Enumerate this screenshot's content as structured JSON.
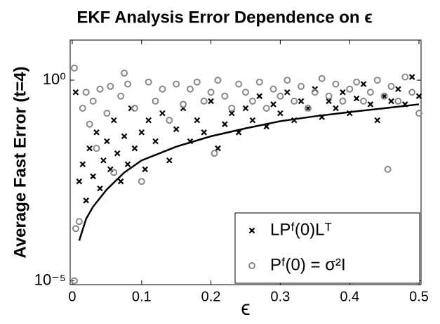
{
  "chart_data": {
    "type": "scatter",
    "title": "EKF Analysis Error Dependence on ϵ",
    "xlabel": "ϵ",
    "ylabel": "Average Fast Error (t=4)",
    "yscale": "log",
    "xlim": [
      -0.003,
      0.503
    ],
    "ylim": [
      8e-06,
      10
    ],
    "xticks": [
      0,
      0.1,
      0.2,
      0.3,
      0.4,
      0.5
    ],
    "yticks": [
      {
        "value": 1e-05,
        "label": "10⁻⁵"
      },
      {
        "value": 1,
        "label": "10⁰"
      }
    ],
    "legend": "lower right",
    "series": [
      {
        "name": "LPᶠ(0)Lᵀ",
        "marker": "x",
        "color": "#000000",
        "x": [
          0.005,
          0.01,
          0.015,
          0.02,
          0.025,
          0.03,
          0.035,
          0.04,
          0.045,
          0.05,
          0.055,
          0.06,
          0.065,
          0.07,
          0.075,
          0.08,
          0.085,
          0.09,
          0.1,
          0.105,
          0.11,
          0.12,
          0.13,
          0.14,
          0.15,
          0.16,
          0.17,
          0.18,
          0.19,
          0.2,
          0.21,
          0.22,
          0.23,
          0.24,
          0.25,
          0.26,
          0.27,
          0.28,
          0.29,
          0.3,
          0.31,
          0.32,
          0.33,
          0.34,
          0.35,
          0.36,
          0.37,
          0.38,
          0.39,
          0.4,
          0.41,
          0.42,
          0.43,
          0.44,
          0.45,
          0.46,
          0.47,
          0.48,
          0.49,
          0.5
        ],
        "values": [
          0.5,
          0.003,
          0.008,
          0.001,
          0.02,
          0.004,
          0.05,
          0.002,
          0.01,
          0.03,
          0.006,
          0.1,
          0.015,
          0.003,
          0.04,
          0.008,
          0.2,
          0.02,
          0.05,
          0.006,
          0.1,
          0.03,
          0.15,
          0.01,
          0.06,
          0.2,
          0.03,
          0.1,
          0.05,
          0.3,
          0.02,
          0.08,
          0.15,
          0.05,
          0.2,
          0.1,
          0.4,
          0.07,
          0.25,
          0.15,
          0.5,
          0.1,
          0.3,
          0.2,
          0.6,
          0.12,
          0.3,
          0.2,
          0.5,
          0.15,
          0.35,
          0.8,
          0.25,
          0.1,
          0.4,
          0.3,
          0.6,
          0.25,
          1.2,
          0.4
        ]
      },
      {
        "name": "Pᶠ(0) = σ²I",
        "marker": "o",
        "color": "#888888",
        "x": [
          0.003,
          0.003,
          0.005,
          0.01,
          0.015,
          0.02,
          0.025,
          0.03,
          0.035,
          0.04,
          0.05,
          0.055,
          0.06,
          0.07,
          0.075,
          0.08,
          0.09,
          0.1,
          0.11,
          0.12,
          0.13,
          0.14,
          0.15,
          0.16,
          0.17,
          0.18,
          0.19,
          0.2,
          0.205,
          0.21,
          0.22,
          0.23,
          0.24,
          0.25,
          0.26,
          0.27,
          0.28,
          0.29,
          0.3,
          0.31,
          0.32,
          0.33,
          0.34,
          0.35,
          0.36,
          0.37,
          0.38,
          0.39,
          0.4,
          0.41,
          0.42,
          0.43,
          0.44,
          0.45,
          0.455,
          0.46,
          0.47,
          0.48,
          0.49,
          0.5
        ],
        "values": [
          2,
          1e-05,
          0.0002,
          0.0003,
          0.2,
          0.5,
          0.08,
          0.3,
          0.02,
          0.6,
          0.15,
          0.7,
          0.005,
          0.4,
          1.5,
          0.8,
          0.2,
          0.003,
          0.9,
          0.3,
          0.6,
          0.1,
          0.8,
          0.25,
          0.6,
          0.9,
          0.3,
          0.5,
          0.015,
          1,
          0.4,
          0.2,
          0.8,
          0.5,
          0.3,
          0.9,
          0.2,
          0.6,
          0.4,
          1,
          0.3,
          0.7,
          0.2,
          0.5,
          1.1,
          0.4,
          0.8,
          0.3,
          0.6,
          0.9,
          0.3,
          0.5,
          1,
          0.4,
          0.006,
          0.7,
          0.3,
          1.2,
          0.5,
          0.15
        ]
      },
      {
        "line": true,
        "color": "#000000",
        "x": [
          0.01,
          0.02,
          0.03,
          0.05,
          0.075,
          0.1,
          0.15,
          0.2,
          0.25,
          0.3,
          0.35,
          0.4,
          0.45,
          0.5
        ],
        "values": [
          0.0001,
          0.00035,
          0.0007,
          0.0019,
          0.005,
          0.01,
          0.022,
          0.04,
          0.063,
          0.095,
          0.126,
          0.16,
          0.2,
          0.25
        ]
      }
    ]
  }
}
